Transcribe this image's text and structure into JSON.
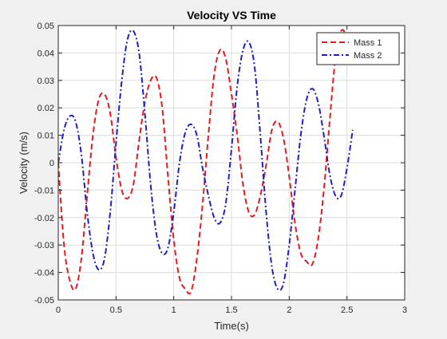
{
  "chart_data": {
    "type": "line",
    "title": "Velocity VS Time",
    "xlabel": "Time(s)",
    "ylabel": "Velocity (m/s)",
    "xlim": [
      0,
      3
    ],
    "ylim": [
      -0.05,
      0.05
    ],
    "xticks": [
      0,
      0.5,
      1,
      1.5,
      2,
      2.5,
      3
    ],
    "xtick_labels": [
      "0",
      "0.5",
      "1",
      "1.5",
      "2",
      "2.5",
      "3"
    ],
    "yticks": [
      -0.05,
      -0.04,
      -0.03,
      -0.02,
      -0.01,
      0,
      0.01,
      0.02,
      0.03,
      0.04,
      0.05
    ],
    "ytick_labels": [
      "-0.05",
      "-0.04",
      "-0.03",
      "-0.02",
      "-0.01",
      "0",
      "0.01",
      "0.02",
      "0.03",
      "0.04",
      "0.05"
    ],
    "grid": true,
    "legend_position": "top-right",
    "series": [
      {
        "name": "Mass 1",
        "color": "#e8191c",
        "line_style": "dashed",
        "points": [
          [
            0.0,
            0.0
          ],
          [
            0.05,
            -0.03
          ],
          [
            0.1,
            -0.043
          ],
          [
            0.15,
            -0.046
          ],
          [
            0.2,
            -0.035
          ],
          [
            0.25,
            -0.012
          ],
          [
            0.3,
            0.01
          ],
          [
            0.35,
            0.023
          ],
          [
            0.4,
            0.025
          ],
          [
            0.45,
            0.018
          ],
          [
            0.5,
            0.002
          ],
          [
            0.55,
            -0.01
          ],
          [
            0.6,
            -0.013
          ],
          [
            0.65,
            -0.008
          ],
          [
            0.7,
            0.008
          ],
          [
            0.75,
            0.022
          ],
          [
            0.8,
            0.03
          ],
          [
            0.85,
            0.031
          ],
          [
            0.9,
            0.02
          ],
          [
            0.95,
            -0.005
          ],
          [
            1.0,
            -0.028
          ],
          [
            1.05,
            -0.042
          ],
          [
            1.1,
            -0.046
          ],
          [
            1.15,
            -0.047
          ],
          [
            1.2,
            -0.035
          ],
          [
            1.25,
            -0.015
          ],
          [
            1.3,
            0.01
          ],
          [
            1.35,
            0.032
          ],
          [
            1.4,
            0.041
          ],
          [
            1.45,
            0.038
          ],
          [
            1.5,
            0.025
          ],
          [
            1.55,
            0.01
          ],
          [
            1.6,
            -0.008
          ],
          [
            1.65,
            -0.018
          ],
          [
            1.7,
            -0.019
          ],
          [
            1.75,
            -0.012
          ],
          [
            1.8,
            -0.001
          ],
          [
            1.85,
            0.012
          ],
          [
            1.9,
            0.015
          ],
          [
            1.95,
            0.009
          ],
          [
            2.0,
            -0.005
          ],
          [
            2.05,
            -0.022
          ],
          [
            2.1,
            -0.033
          ],
          [
            2.15,
            -0.036
          ],
          [
            2.2,
            -0.037
          ],
          [
            2.25,
            -0.028
          ],
          [
            2.3,
            -0.01
          ],
          [
            2.35,
            0.015
          ],
          [
            2.4,
            0.038
          ],
          [
            2.45,
            0.048
          ],
          [
            2.5,
            0.046
          ],
          [
            2.55,
            0.04
          ]
        ]
      },
      {
        "name": "Mass 2",
        "color": "#1f1fc8",
        "line_style": "dash-dot",
        "points": [
          [
            0.0,
            0.0
          ],
          [
            0.05,
            0.012
          ],
          [
            0.1,
            0.017
          ],
          [
            0.15,
            0.015
          ],
          [
            0.2,
            0.003
          ],
          [
            0.25,
            -0.018
          ],
          [
            0.3,
            -0.033
          ],
          [
            0.35,
            -0.039
          ],
          [
            0.4,
            -0.035
          ],
          [
            0.45,
            -0.018
          ],
          [
            0.5,
            0.007
          ],
          [
            0.55,
            0.03
          ],
          [
            0.6,
            0.045
          ],
          [
            0.65,
            0.048
          ],
          [
            0.7,
            0.04
          ],
          [
            0.75,
            0.018
          ],
          [
            0.8,
            -0.008
          ],
          [
            0.85,
            -0.026
          ],
          [
            0.9,
            -0.033
          ],
          [
            0.95,
            -0.031
          ],
          [
            1.0,
            -0.018
          ],
          [
            1.05,
            0.0
          ],
          [
            1.1,
            0.011
          ],
          [
            1.15,
            0.014
          ],
          [
            1.2,
            0.01
          ],
          [
            1.25,
            -0.002
          ],
          [
            1.3,
            -0.012
          ],
          [
            1.35,
            -0.02
          ],
          [
            1.4,
            -0.022
          ],
          [
            1.45,
            -0.015
          ],
          [
            1.5,
            0.005
          ],
          [
            1.55,
            0.028
          ],
          [
            1.6,
            0.041
          ],
          [
            1.65,
            0.044
          ],
          [
            1.7,
            0.035
          ],
          [
            1.75,
            0.01
          ],
          [
            1.8,
            -0.018
          ],
          [
            1.85,
            -0.038
          ],
          [
            1.9,
            -0.046
          ],
          [
            1.95,
            -0.044
          ],
          [
            2.0,
            -0.03
          ],
          [
            2.05,
            -0.01
          ],
          [
            2.1,
            0.01
          ],
          [
            2.15,
            0.023
          ],
          [
            2.2,
            0.027
          ],
          [
            2.25,
            0.022
          ],
          [
            2.3,
            0.01
          ],
          [
            2.35,
            -0.004
          ],
          [
            2.4,
            -0.012
          ],
          [
            2.45,
            -0.012
          ],
          [
            2.5,
            -0.002
          ],
          [
            2.55,
            0.012
          ]
        ]
      }
    ]
  }
}
